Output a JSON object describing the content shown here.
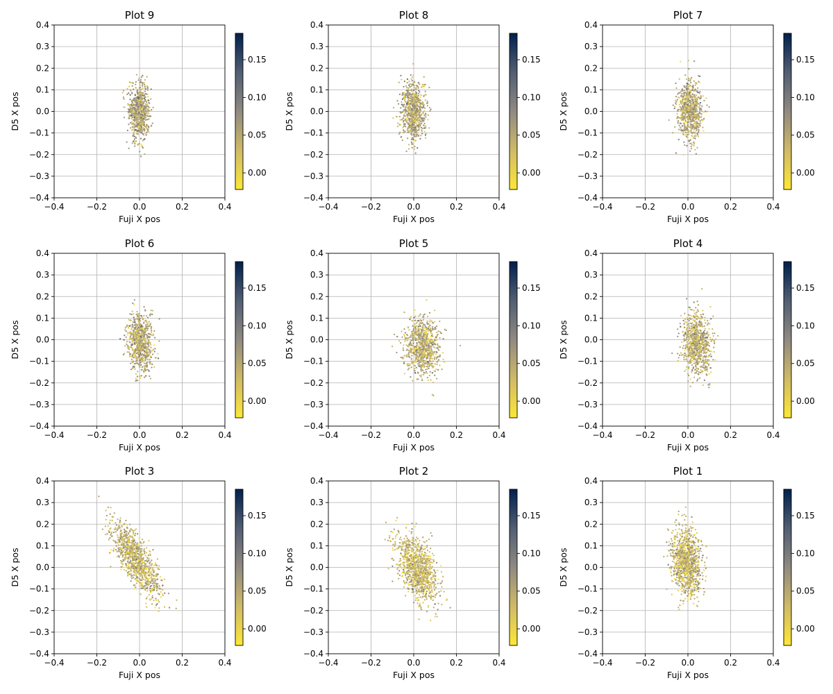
{
  "chart_data": [
    {
      "type": "scatter",
      "title": "Plot 9",
      "xlabel": "Fuji X pos",
      "ylabel": "D5 X pos",
      "xlim": [
        -0.4,
        0.4
      ],
      "ylim": [
        -0.4,
        0.4
      ],
      "x_ticks": [
        "−0.4",
        "−0.2",
        "0.0",
        "0.2",
        "0.4"
      ],
      "y_ticks": [
        "−0.4",
        "−0.3",
        "−0.2",
        "−0.1",
        "0.0",
        "0.1",
        "0.2",
        "0.3",
        "0.4"
      ],
      "grid": true,
      "colorbar": {
        "range": [
          -0.022,
          0.185
        ],
        "ticks": [
          "0.00",
          "0.05",
          "0.10",
          "0.15"
        ],
        "tick_values": [
          0,
          0.05,
          0.1,
          0.15
        ],
        "colormap": "cividis_r"
      },
      "cloud": {
        "x_center": 0.0,
        "y_center": 0.0,
        "x_spread": 0.025,
        "y_spread": 0.062,
        "correlation": 0.0,
        "color_mean": 0.055,
        "color_spread": 0.028,
        "n_points": 750
      }
    },
    {
      "type": "scatter",
      "title": "Plot 8",
      "xlabel": "Fuji X pos",
      "ylabel": "D5 X pos",
      "xlim": [
        -0.4,
        0.4
      ],
      "ylim": [
        -0.4,
        0.4
      ],
      "x_ticks": [
        "−0.4",
        "−0.2",
        "0.0",
        "0.2",
        "0.4"
      ],
      "y_ticks": [
        "−0.4",
        "−0.3",
        "−0.2",
        "−0.1",
        "0.0",
        "0.1",
        "0.2",
        "0.3",
        "0.4"
      ],
      "grid": true,
      "colorbar": {
        "range": [
          -0.022,
          0.185
        ],
        "ticks": [
          "0.00",
          "0.05",
          "0.10",
          "0.15"
        ],
        "tick_values": [
          0,
          0.05,
          0.1,
          0.15
        ],
        "colormap": "cividis_r"
      },
      "cloud": {
        "x_center": 0.0,
        "y_center": 0.0,
        "x_spread": 0.028,
        "y_spread": 0.068,
        "correlation": -0.05,
        "color_mean": 0.05,
        "color_spread": 0.028,
        "n_points": 750
      }
    },
    {
      "type": "scatter",
      "title": "Plot 7",
      "xlabel": "Fuji X pos",
      "ylabel": "D5 X pos",
      "xlim": [
        -0.4,
        0.4
      ],
      "ylim": [
        -0.4,
        0.4
      ],
      "x_ticks": [
        "−0.4",
        "−0.2",
        "0.0",
        "0.2",
        "0.4"
      ],
      "y_ticks": [
        "−0.4",
        "−0.3",
        "−0.2",
        "−0.1",
        "0.0",
        "0.1",
        "0.2",
        "0.3",
        "0.4"
      ],
      "grid": true,
      "colorbar": {
        "range": [
          -0.022,
          0.185
        ],
        "ticks": [
          "0.00",
          "0.05",
          "0.10",
          "0.15"
        ],
        "tick_values": [
          0,
          0.05,
          0.1,
          0.15
        ],
        "colormap": "cividis_r"
      },
      "cloud": {
        "x_center": 0.01,
        "y_center": 0.0,
        "x_spread": 0.03,
        "y_spread": 0.07,
        "correlation": -0.05,
        "color_mean": 0.05,
        "color_spread": 0.028,
        "n_points": 750
      }
    },
    {
      "type": "scatter",
      "title": "Plot 6",
      "xlabel": "Fuji X pos",
      "ylabel": "D5 X pos",
      "xlim": [
        -0.4,
        0.4
      ],
      "ylim": [
        -0.4,
        0.4
      ],
      "x_ticks": [
        "−0.4",
        "−0.2",
        "0.0",
        "0.2",
        "0.4"
      ],
      "y_ticks": [
        "−0.4",
        "−0.3",
        "−0.2",
        "−0.1",
        "0.0",
        "0.1",
        "0.2",
        "0.3",
        "0.4"
      ],
      "grid": true,
      "colorbar": {
        "range": [
          -0.022,
          0.185
        ],
        "ticks": [
          "0.00",
          "0.05",
          "0.10",
          "0.15"
        ],
        "tick_values": [
          0,
          0.05,
          0.1,
          0.15
        ],
        "colormap": "cividis_r"
      },
      "cloud": {
        "x_center": 0.005,
        "y_center": -0.01,
        "x_spread": 0.03,
        "y_spread": 0.068,
        "correlation": -0.1,
        "color_mean": 0.05,
        "color_spread": 0.028,
        "n_points": 750
      }
    },
    {
      "type": "scatter",
      "title": "Plot 5",
      "xlabel": "Fuji X pos",
      "ylabel": "D5 X pos",
      "xlim": [
        -0.4,
        0.4
      ],
      "ylim": [
        -0.4,
        0.4
      ],
      "x_ticks": [
        "−0.4",
        "−0.2",
        "0.0",
        "0.2",
        "0.4"
      ],
      "y_ticks": [
        "−0.4",
        "−0.3",
        "−0.2",
        "−0.1",
        "0.0",
        "0.1",
        "0.2",
        "0.3",
        "0.4"
      ],
      "grid": true,
      "colorbar": {
        "range": [
          -0.022,
          0.185
        ],
        "ticks": [
          "0.00",
          "0.05",
          "0.10",
          "0.15"
        ],
        "tick_values": [
          0,
          0.05,
          0.1,
          0.15
        ],
        "colormap": "cividis_r"
      },
      "cloud": {
        "x_center": 0.04,
        "y_center": -0.03,
        "x_spread": 0.04,
        "y_spread": 0.065,
        "correlation": -0.1,
        "color_mean": 0.045,
        "color_spread": 0.028,
        "n_points": 850
      }
    },
    {
      "type": "scatter",
      "title": "Plot 4",
      "xlabel": "Fuji X pos",
      "ylabel": "D5 X pos",
      "xlim": [
        -0.4,
        0.4
      ],
      "ylim": [
        -0.4,
        0.4
      ],
      "x_ticks": [
        "−0.4",
        "−0.2",
        "0.0",
        "0.2",
        "0.4"
      ],
      "y_ticks": [
        "−0.4",
        "−0.3",
        "−0.2",
        "−0.1",
        "0.0",
        "0.1",
        "0.2",
        "0.3",
        "0.4"
      ],
      "grid": true,
      "colorbar": {
        "range": [
          -0.022,
          0.185
        ],
        "ticks": [
          "0.00",
          "0.05",
          "0.10",
          "0.15"
        ],
        "tick_values": [
          0,
          0.05,
          0.1,
          0.15
        ],
        "colormap": "cividis_r"
      },
      "cloud": {
        "x_center": 0.04,
        "y_center": -0.02,
        "x_spread": 0.035,
        "y_spread": 0.07,
        "correlation": -0.1,
        "color_mean": 0.045,
        "color_spread": 0.028,
        "n_points": 800
      }
    },
    {
      "type": "scatter",
      "title": "Plot 3",
      "xlabel": "Fuji X pos",
      "ylabel": "D5 X pos",
      "xlim": [
        -0.4,
        0.4
      ],
      "ylim": [
        -0.4,
        0.4
      ],
      "x_ticks": [
        "−0.4",
        "−0.2",
        "0.0",
        "0.2",
        "0.4"
      ],
      "y_ticks": [
        "−0.4",
        "−0.3",
        "−0.2",
        "−0.1",
        "0.0",
        "0.1",
        "0.2",
        "0.3",
        "0.4"
      ],
      "grid": true,
      "colorbar": {
        "range": [
          -0.022,
          0.185
        ],
        "ticks": [
          "0.00",
          "0.05",
          "0.10",
          "0.15"
        ],
        "tick_values": [
          0,
          0.05,
          0.1,
          0.15
        ],
        "colormap": "cividis_r"
      },
      "cloud": {
        "x_center": -0.02,
        "y_center": 0.04,
        "x_spread": 0.055,
        "y_spread": 0.085,
        "correlation": -0.75,
        "color_mean": 0.04,
        "color_spread": 0.03,
        "n_points": 1000
      }
    },
    {
      "type": "scatter",
      "title": "Plot 2",
      "xlabel": "Fuji X pos",
      "ylabel": "D5 X pos",
      "xlim": [
        -0.4,
        0.4
      ],
      "ylim": [
        -0.4,
        0.4
      ],
      "x_ticks": [
        "−0.4",
        "−0.2",
        "0.0",
        "0.2",
        "0.4"
      ],
      "y_ticks": [
        "−0.4",
        "−0.3",
        "−0.2",
        "−0.1",
        "0.0",
        "0.1",
        "0.2",
        "0.3",
        "0.4"
      ],
      "grid": true,
      "colorbar": {
        "range": [
          -0.022,
          0.185
        ],
        "ticks": [
          "0.00",
          "0.05",
          "0.10",
          "0.15"
        ],
        "tick_values": [
          0,
          0.05,
          0.1,
          0.15
        ],
        "colormap": "cividis_r"
      },
      "cloud": {
        "x_center": 0.02,
        "y_center": -0.01,
        "x_spread": 0.048,
        "y_spread": 0.078,
        "correlation": -0.45,
        "color_mean": 0.035,
        "color_spread": 0.028,
        "n_points": 1000
      }
    },
    {
      "type": "scatter",
      "title": "Plot 1",
      "xlabel": "Fuji X pos",
      "ylabel": "D5 X pos",
      "xlim": [
        -0.4,
        0.4
      ],
      "ylim": [
        -0.4,
        0.4
      ],
      "x_ticks": [
        "−0.4",
        "−0.2",
        "0.0",
        "0.2",
        "0.4"
      ],
      "y_ticks": [
        "−0.4",
        "−0.3",
        "−0.2",
        "−0.1",
        "0.0",
        "0.1",
        "0.2",
        "0.3",
        "0.4"
      ],
      "grid": true,
      "colorbar": {
        "range": [
          -0.022,
          0.185
        ],
        "ticks": [
          "0.00",
          "0.05",
          "0.10",
          "0.15"
        ],
        "tick_values": [
          0,
          0.05,
          0.1,
          0.15
        ],
        "colormap": "cividis_r"
      },
      "cloud": {
        "x_center": -0.005,
        "y_center": 0.02,
        "x_spread": 0.035,
        "y_spread": 0.078,
        "correlation": -0.15,
        "color_mean": 0.04,
        "color_spread": 0.028,
        "n_points": 1000
      }
    }
  ]
}
